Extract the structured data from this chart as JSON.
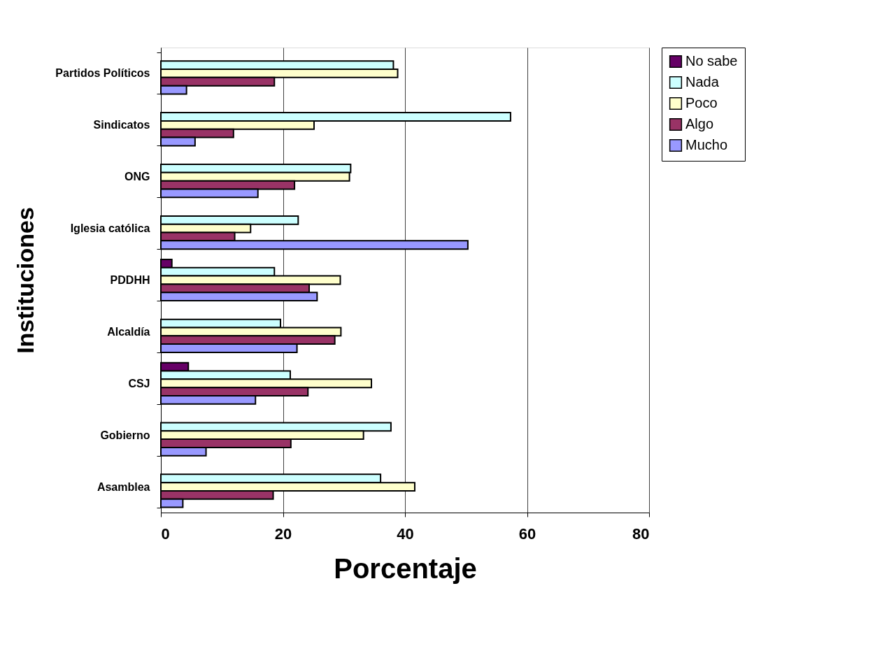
{
  "chart_data": {
    "type": "bar",
    "orientation": "horizontal",
    "xlabel": "Porcentaje",
    "ylabel": "Instituciones",
    "categories": [
      "Partidos Políticos",
      "Sindicatos",
      "ONG",
      "Iglesia católica",
      "PDDHH",
      "Alcaldía",
      "CSJ",
      "Gobierno",
      "Asamblea"
    ],
    "series": [
      {
        "name": "No sabe",
        "color": "#660066",
        "values": [
          null,
          null,
          null,
          null,
          1.8,
          null,
          4.5,
          null,
          null
        ]
      },
      {
        "name": "Nada",
        "color": "#ccffff",
        "values": [
          38.1,
          57.3,
          31.1,
          22.5,
          18.6,
          19.6,
          21.2,
          37.7,
          36.0
        ]
      },
      {
        "name": "Poco",
        "color": "#ffffcc",
        "values": [
          38.8,
          25.1,
          30.9,
          14.7,
          29.4,
          29.5,
          34.5,
          33.2,
          41.6
        ]
      },
      {
        "name": "Algo",
        "color": "#993366",
        "values": [
          18.6,
          11.9,
          21.9,
          12.1,
          24.3,
          28.5,
          24.1,
          21.3,
          18.4
        ]
      },
      {
        "name": "Mucho",
        "color": "#9999ff",
        "values": [
          4.2,
          5.6,
          15.9,
          50.3,
          25.6,
          22.3,
          15.5,
          7.4,
          3.6
        ]
      }
    ],
    "xlim": [
      0,
      80
    ],
    "xticks": [
      0,
      20,
      40,
      60,
      80
    ],
    "grid": "x",
    "legend": "right"
  }
}
